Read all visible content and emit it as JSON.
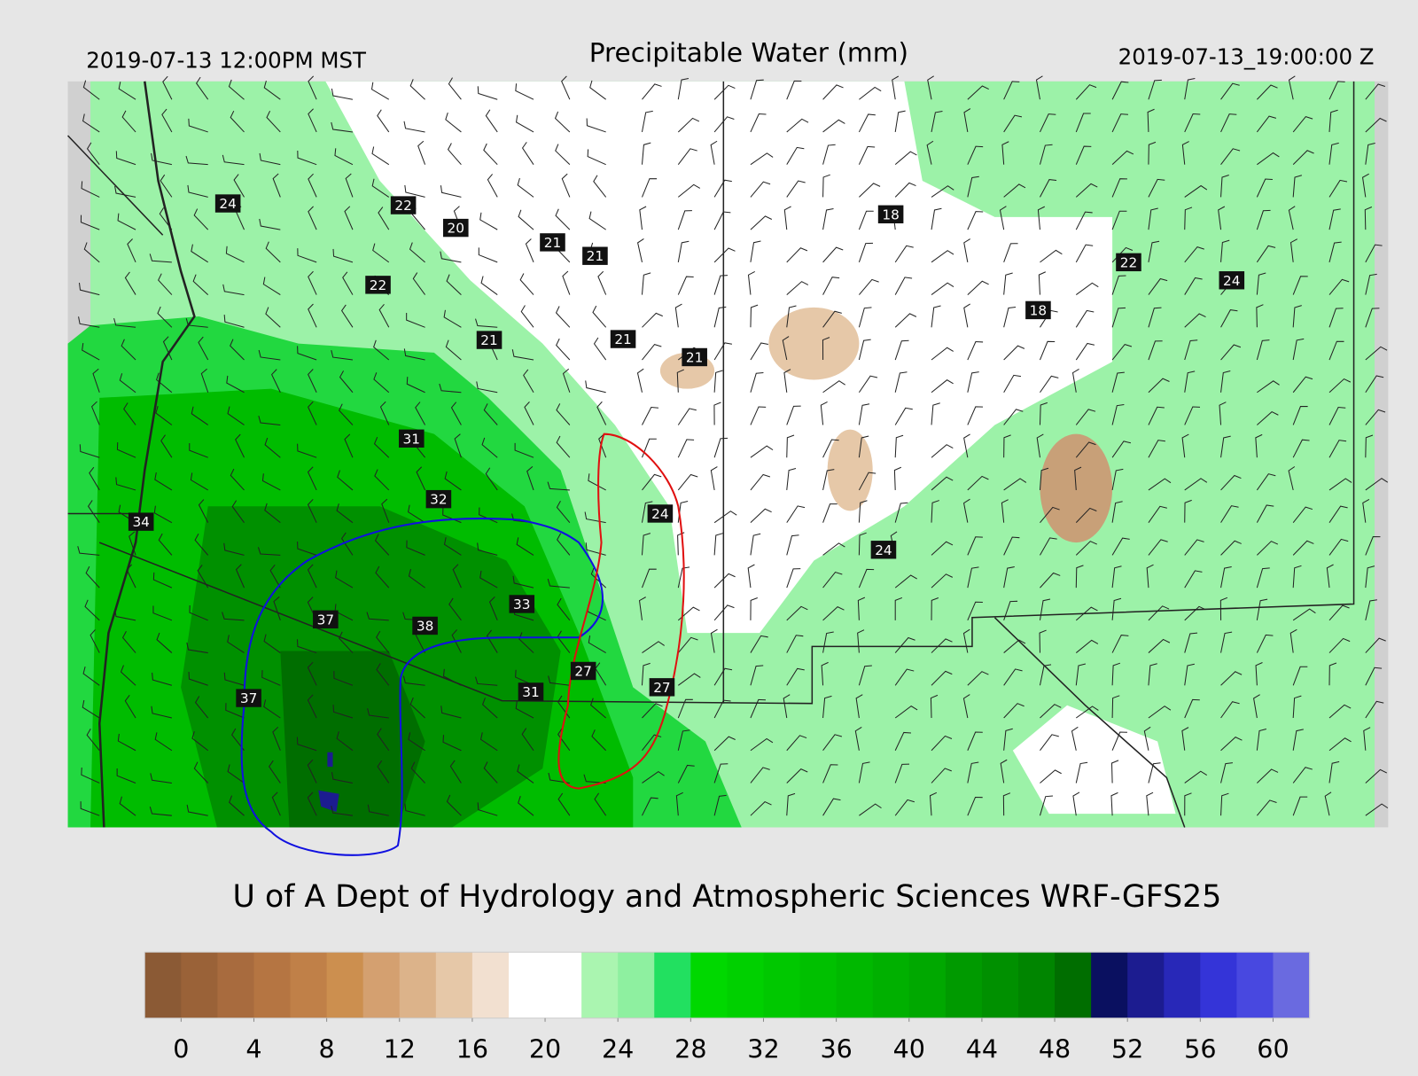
{
  "header": {
    "left": "2019-07-13 12:00PM MST",
    "title": "Precipitable Water (mm)",
    "right": "2019-07-13_19:00:00 Z"
  },
  "stations": [
    24,
    22,
    20,
    21,
    21,
    22,
    21,
    21,
    21,
    18,
    18,
    22,
    24,
    31,
    32,
    34,
    24,
    24,
    33,
    37,
    38,
    27,
    27,
    31,
    37
  ],
  "credit": "U of A Dept of Hydrology and Atmospheric Sciences WRF-GFS25",
  "colorbar": {
    "lim": [
      -2,
      62
    ],
    "ticks": [
      0,
      4,
      8,
      12,
      16,
      20,
      24,
      28,
      32,
      36,
      40,
      44,
      48,
      52,
      56,
      60
    ],
    "colors": [
      "#8b5a35",
      "#9a6238",
      "#a86b3e",
      "#b57542",
      "#c08048",
      "#cc8f4f",
      "#d4a070",
      "#dcb38a",
      "#e6c8a8",
      "#f2e0d0",
      "#ffffff",
      "#ffffff",
      "#aaf5b0",
      "#8ef0a0",
      "#22e060",
      "#00d800",
      "#00d000",
      "#00c800",
      "#00c000",
      "#00b800",
      "#00b000",
      "#00a800",
      "#009a00",
      "#009000",
      "#008500",
      "#006e00",
      "#0a1060",
      "#1c1c90",
      "#2828b8",
      "#3434d8",
      "#4848e0",
      "#6a6ae0"
    ]
  }
}
